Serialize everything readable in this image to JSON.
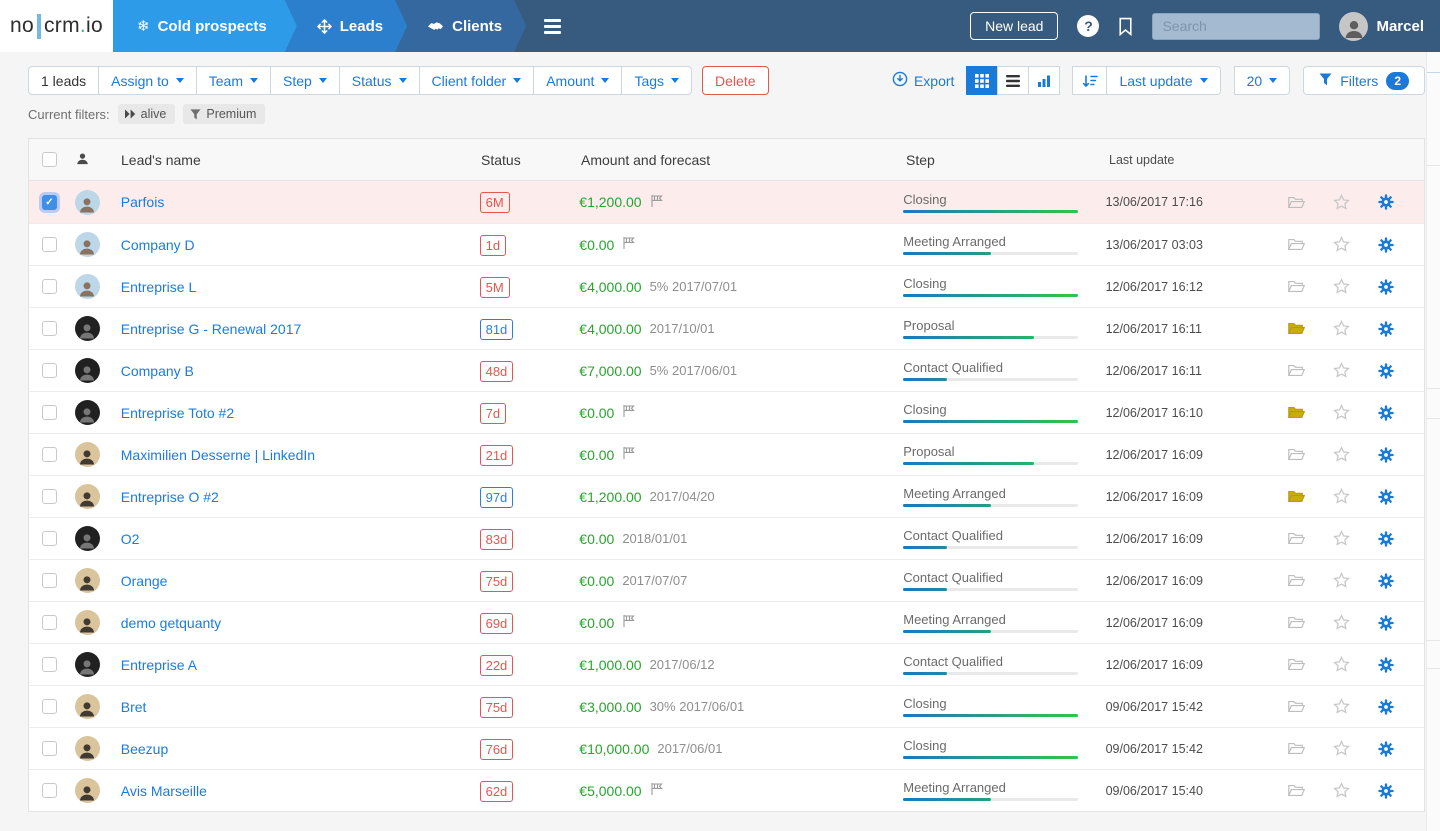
{
  "colors": {
    "navbar": "#375a7f",
    "tab_active": "#2e9be8",
    "tab_leads": "#2b7fcd",
    "tab_clients": "#35689f",
    "accent_blue": "#1a7ad9",
    "status_red": "#e2574e",
    "status_blue": "#2b7fd4",
    "amount_green": "#28a42e",
    "folder_yellow": "#c9ae0b",
    "selected_row": "#fcecec"
  },
  "navbar": {
    "logo": {
      "pre": "no",
      "mid": "crm",
      "dot": ".",
      "suffix": "io"
    },
    "tabs": [
      {
        "icon": "snowflake-icon",
        "label": "Cold prospects"
      },
      {
        "icon": "move-icon",
        "label": "Leads"
      },
      {
        "icon": "handshake-icon",
        "label": "Clients"
      }
    ],
    "menu_icon": "hamburger-icon",
    "new_lead": "New lead",
    "help": "?",
    "search_placeholder": "Search",
    "user": "Marcel"
  },
  "toolbar": {
    "count": "1 leads",
    "dropdowns": [
      "Assign to",
      "Team",
      "Step",
      "Status",
      "Client folder",
      "Amount",
      "Tags"
    ],
    "delete": "Delete",
    "export": "Export",
    "view_icons": [
      "grid-icon",
      "list-icon",
      "chart-icon"
    ],
    "sort_icon": "sort-desc-icon",
    "sort_by": "Last update",
    "per_page": "20",
    "filters": "Filters",
    "filters_count": "2"
  },
  "filters_bar": {
    "label": "Current filters:",
    "chips": [
      {
        "icon": "fast-forward-icon",
        "label": "alive"
      },
      {
        "icon": "funnel-icon",
        "label": "Premium"
      }
    ]
  },
  "table": {
    "headers": {
      "name": "Lead's name",
      "status": "Status",
      "amount": "Amount and forecast",
      "step": "Step",
      "update": "Last update"
    },
    "rows": [
      {
        "name": "Parfois",
        "avatar": "woman",
        "selected": true,
        "checked": true,
        "status": "6M",
        "status_color": "red",
        "amount": "€1,200.00",
        "forecast": "",
        "flag": true,
        "step": "Closing",
        "step_percent": 100,
        "updated": "13/06/2017 17:16",
        "folder": "gray"
      },
      {
        "name": "Company D",
        "avatar": "woman",
        "selected": false,
        "checked": false,
        "status": "1d",
        "status_color": "red",
        "amount": "€0.00",
        "forecast": "",
        "flag": true,
        "step": "Meeting Arranged",
        "step_percent": 50,
        "updated": "13/06/2017 03:03",
        "folder": "gray"
      },
      {
        "name": "Entreprise L",
        "avatar": "woman",
        "selected": false,
        "checked": false,
        "status": "5M",
        "status_color": "red",
        "amount": "€4,000.00",
        "forecast": "5% 2017/07/01",
        "flag": false,
        "step": "Closing",
        "step_percent": 100,
        "updated": "12/06/2017 16:12",
        "folder": "gray"
      },
      {
        "name": "Entreprise G - Renewal 2017",
        "avatar": "dark",
        "selected": false,
        "checked": false,
        "status": "81d",
        "status_color": "blue",
        "amount": "€4,000.00",
        "forecast": "2017/10/01",
        "flag": false,
        "step": "Proposal",
        "step_percent": 75,
        "updated": "12/06/2017 16:11",
        "folder": "yellow"
      },
      {
        "name": "Company B",
        "avatar": "dark",
        "selected": false,
        "checked": false,
        "status": "48d",
        "status_color": "red",
        "amount": "€7,000.00",
        "forecast": "5% 2017/06/01",
        "flag": false,
        "step": "Contact Qualified",
        "step_percent": 25,
        "updated": "12/06/2017 16:11",
        "folder": "gray"
      },
      {
        "name": "Entreprise Toto #2",
        "avatar": "dark",
        "selected": false,
        "checked": false,
        "status": "7d",
        "status_color": "red",
        "amount": "€0.00",
        "forecast": "",
        "flag": true,
        "step": "Closing",
        "step_percent": 100,
        "updated": "12/06/2017 16:10",
        "folder": "yellow"
      },
      {
        "name": "Maximilien Desserne | LinkedIn",
        "avatar": "man",
        "selected": false,
        "checked": false,
        "status": "21d",
        "status_color": "red",
        "amount": "€0.00",
        "forecast": "",
        "flag": true,
        "step": "Proposal",
        "step_percent": 75,
        "updated": "12/06/2017 16:09",
        "folder": "gray"
      },
      {
        "name": "Entreprise O #2",
        "avatar": "man",
        "selected": false,
        "checked": false,
        "status": "97d",
        "status_color": "blue",
        "amount": "€1,200.00",
        "forecast": "2017/04/20",
        "flag": false,
        "step": "Meeting Arranged",
        "step_percent": 50,
        "updated": "12/06/2017 16:09",
        "folder": "yellow"
      },
      {
        "name": "O2",
        "avatar": "dark",
        "selected": false,
        "checked": false,
        "status": "83d",
        "status_color": "red",
        "amount": "€0.00",
        "forecast": "2018/01/01",
        "flag": false,
        "step": "Contact Qualified",
        "step_percent": 25,
        "updated": "12/06/2017 16:09",
        "folder": "gray"
      },
      {
        "name": "Orange",
        "avatar": "man",
        "selected": false,
        "checked": false,
        "status": "75d",
        "status_color": "red",
        "amount": "€0.00",
        "forecast": "2017/07/07",
        "flag": false,
        "step": "Contact Qualified",
        "step_percent": 25,
        "updated": "12/06/2017 16:09",
        "folder": "gray"
      },
      {
        "name": "demo getquanty",
        "avatar": "man",
        "selected": false,
        "checked": false,
        "status": "69d",
        "status_color": "red",
        "amount": "€0.00",
        "forecast": "",
        "flag": true,
        "step": "Meeting Arranged",
        "step_percent": 50,
        "updated": "12/06/2017 16:09",
        "folder": "gray"
      },
      {
        "name": "Entreprise A",
        "avatar": "dark",
        "selected": false,
        "checked": false,
        "status": "22d",
        "status_color": "red",
        "amount": "€1,000.00",
        "forecast": "2017/06/12",
        "flag": false,
        "step": "Contact Qualified",
        "step_percent": 25,
        "updated": "12/06/2017 16:09",
        "folder": "gray"
      },
      {
        "name": "Bret",
        "avatar": "man",
        "selected": false,
        "checked": false,
        "status": "75d",
        "status_color": "red",
        "amount": "€3,000.00",
        "forecast": "30% 2017/06/01",
        "flag": false,
        "step": "Closing",
        "step_percent": 100,
        "updated": "09/06/2017 15:42",
        "folder": "gray"
      },
      {
        "name": "Beezup",
        "avatar": "man",
        "selected": false,
        "checked": false,
        "status": "76d",
        "status_color": "red",
        "amount": "€10,000.00",
        "forecast": "2017/06/01",
        "flag": false,
        "step": "Closing",
        "step_percent": 100,
        "updated": "09/06/2017 15:42",
        "folder": "gray"
      },
      {
        "name": "Avis Marseille",
        "avatar": "man",
        "selected": false,
        "checked": false,
        "status": "62d",
        "status_color": "red",
        "amount": "€5,000.00",
        "forecast": "",
        "flag": true,
        "step": "Meeting Arranged",
        "step_percent": 50,
        "updated": "09/06/2017 15:40",
        "folder": "gray"
      }
    ]
  }
}
